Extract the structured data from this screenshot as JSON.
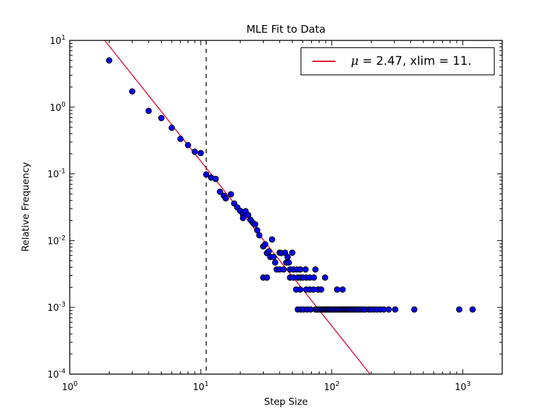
{
  "chart_data": {
    "type": "scatter",
    "title": "MLE Fit to Data",
    "xlabel": "Step Size",
    "ylabel": "Relative Frequency",
    "xscale": "log",
    "yscale": "log",
    "xlim": [
      1,
      2000
    ],
    "ylim": [
      0.0001,
      10
    ],
    "grid": false,
    "x_tick_exponents": [
      "0",
      "1",
      "2",
      "3"
    ],
    "y_tick_exponents": [
      "1",
      "0",
      "-1",
      "-2",
      "-3",
      "-4"
    ],
    "marker_color": "#0000f0",
    "marker_edge_color": "#000000",
    "fit_line": {
      "from": [
        1.85,
        10
      ],
      "to": [
        196,
        0.0001
      ],
      "color": "#dd1133"
    },
    "cutoff_line": {
      "x": 11,
      "style": "dashed",
      "color": "#000000"
    },
    "legend": {
      "mu_symbol": "μ",
      "rest_label": " = 2.47, xlim = 11.",
      "line_color": "#dd1133",
      "position": "upper right"
    },
    "points": [
      [
        2,
        5.0
      ],
      [
        3,
        1.72
      ],
      [
        4,
        0.88
      ],
      [
        5,
        0.685
      ],
      [
        6,
        0.49
      ],
      [
        7,
        0.335
      ],
      [
        8,
        0.27
      ],
      [
        9,
        0.215
      ],
      [
        10,
        0.205
      ],
      [
        11,
        0.098
      ],
      [
        12,
        0.088
      ],
      [
        13,
        0.084
      ],
      [
        14,
        0.054
      ],
      [
        15,
        0.047
      ],
      [
        15.5,
        0.043
      ],
      [
        17,
        0.0495
      ],
      [
        18,
        0.036
      ],
      [
        19,
        0.0315
      ],
      [
        20,
        0.028
      ],
      [
        21,
        0.0248
      ],
      [
        21,
        0.0218
      ],
      [
        22,
        0.0276
      ],
      [
        23,
        0.0242
      ],
      [
        24,
        0.0205
      ],
      [
        25,
        0.0185
      ],
      [
        26,
        0.0175
      ],
      [
        27,
        0.0143
      ],
      [
        28,
        0.012
      ],
      [
        30,
        0.0082
      ],
      [
        31,
        0.0088
      ],
      [
        32,
        0.0065
      ],
      [
        33,
        0.0069
      ],
      [
        34,
        0.0057
      ],
      [
        35,
        0.0104
      ],
      [
        36,
        0.0057
      ],
      [
        37,
        0.0047
      ],
      [
        38,
        0.0037
      ],
      [
        40,
        0.0066
      ],
      [
        40,
        0.0037
      ],
      [
        41,
        0.0065
      ],
      [
        43,
        0.0037
      ],
      [
        44,
        0.0066
      ],
      [
        45,
        0.0047
      ],
      [
        46,
        0.0057
      ],
      [
        47,
        0.0047
      ],
      [
        48,
        0.0037
      ],
      [
        50,
        0.0066
      ],
      [
        51,
        0.0037
      ],
      [
        54,
        0.0037
      ],
      [
        57.5,
        0.0037
      ],
      [
        63,
        0.0037
      ],
      [
        75,
        0.0037
      ],
      [
        30,
        0.0028
      ],
      [
        32,
        0.0028
      ],
      [
        48,
        0.0028
      ],
      [
        51,
        0.0028
      ],
      [
        55,
        0.0028
      ],
      [
        57.5,
        0.0028
      ],
      [
        60,
        0.0028
      ],
      [
        64,
        0.0028
      ],
      [
        68,
        0.0028
      ],
      [
        73,
        0.0028
      ],
      [
        89,
        0.0028
      ],
      [
        53.5,
        0.00185
      ],
      [
        57.5,
        0.00185
      ],
      [
        64,
        0.00185
      ],
      [
        68,
        0.00185
      ],
      [
        72.5,
        0.00185
      ],
      [
        78.5,
        0.00185
      ],
      [
        83,
        0.00185
      ],
      [
        110,
        0.00185
      ],
      [
        121,
        0.00185
      ],
      [
        55,
        0.00093
      ],
      [
        58,
        0.00093
      ],
      [
        61,
        0.00093
      ],
      [
        65,
        0.00093
      ],
      [
        69,
        0.00093
      ],
      [
        75,
        0.00093
      ],
      [
        77,
        0.00093
      ],
      [
        79,
        0.00093
      ],
      [
        81,
        0.00093
      ],
      [
        83,
        0.00093
      ],
      [
        85,
        0.00093
      ],
      [
        87,
        0.00093
      ],
      [
        89,
        0.00093
      ],
      [
        91,
        0.00093
      ],
      [
        93,
        0.00093
      ],
      [
        95,
        0.00093
      ],
      [
        97,
        0.00093
      ],
      [
        99,
        0.00093
      ],
      [
        101,
        0.00093
      ],
      [
        104,
        0.00093
      ],
      [
        107,
        0.00093
      ],
      [
        110,
        0.00093
      ],
      [
        113,
        0.00093
      ],
      [
        116,
        0.00093
      ],
      [
        119,
        0.00093
      ],
      [
        122,
        0.00093
      ],
      [
        125,
        0.00093
      ],
      [
        128,
        0.00093
      ],
      [
        131,
        0.00093
      ],
      [
        134,
        0.00093
      ],
      [
        137,
        0.00093
      ],
      [
        140,
        0.00093
      ],
      [
        144,
        0.00093
      ],
      [
        148,
        0.00093
      ],
      [
        152,
        0.00093
      ],
      [
        157,
        0.00093
      ],
      [
        162,
        0.00093
      ],
      [
        168,
        0.00093
      ],
      [
        174,
        0.00093
      ],
      [
        181,
        0.00093
      ],
      [
        192,
        0.00093
      ],
      [
        200,
        0.00093
      ],
      [
        210,
        0.00093
      ],
      [
        222,
        0.00093
      ],
      [
        235,
        0.00093
      ],
      [
        250,
        0.00093
      ],
      [
        272,
        0.00093
      ],
      [
        305,
        0.00093
      ],
      [
        427,
        0.00093
      ],
      [
        940,
        0.00093
      ],
      [
        1190,
        0.00093
      ]
    ]
  }
}
